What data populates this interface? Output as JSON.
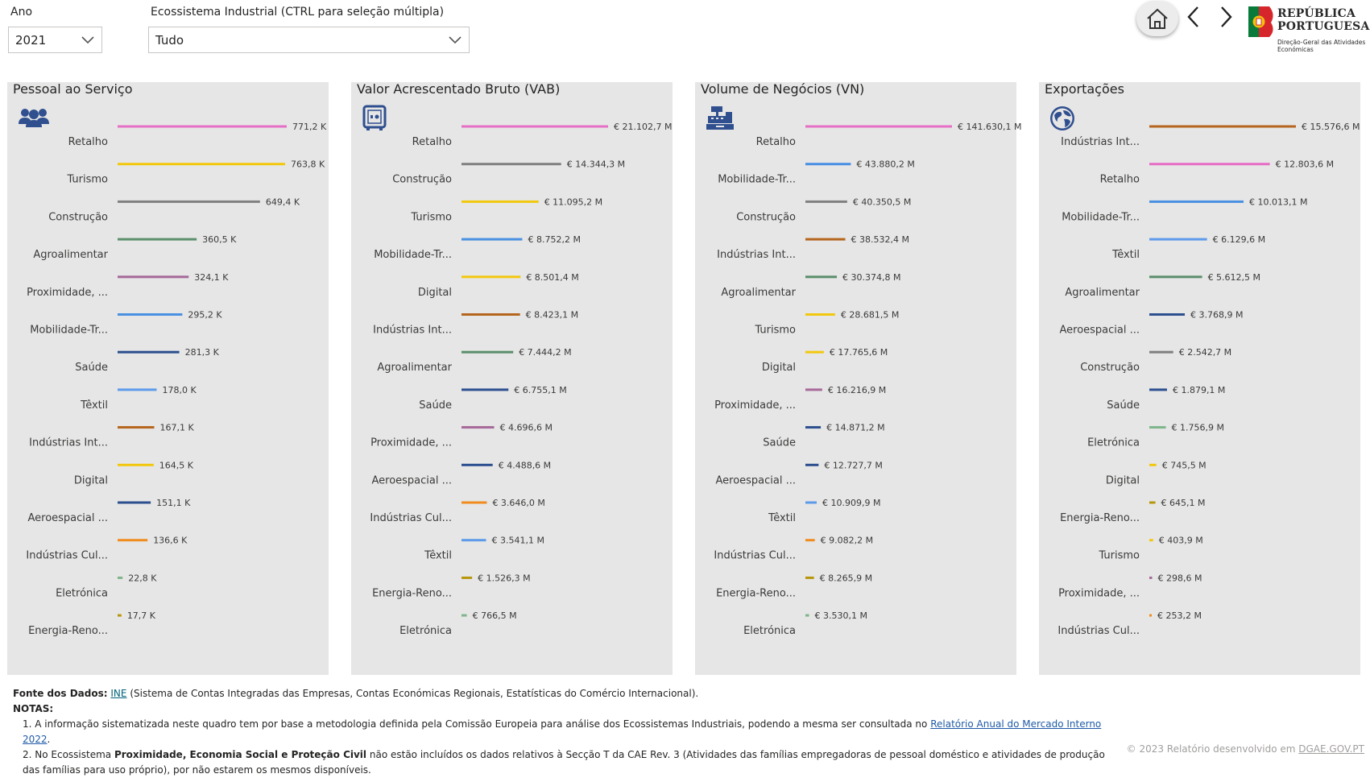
{
  "filters": {
    "year_label": "Ano",
    "year_value": "2021",
    "ecosystem_label": "Ecossistema Industrial (CTRL para seleção múltipla)",
    "ecosystem_value": "Tudo"
  },
  "logo": {
    "line1": "REPÚBLICA",
    "line2": "PORTUGUESA",
    "sub1": "Direção-Geral das Atividades",
    "sub2": "Económicas"
  },
  "colors": {
    "Retalho": "#e66fc5",
    "Turismo": "#f2c80f",
    "Construção": "#808080",
    "Agroalimentar": "#5b8f6b",
    "Proximidade, ...": "#a66999",
    "Mobilidade-Tr...": "#4a90e2",
    "Saúde": "#2c4f8f",
    "Têxtil": "#5d9bea",
    "Indústrias Int...": "#b5651d",
    "Digital": "#f2c80f",
    "Aeroespacial ...": "#2c4f8f",
    "Indústrias Cul...": "#f08c1e",
    "Eletrónica": "#7fb58a",
    "Energia-Reno...": "#b8960c"
  },
  "chart_data": [
    {
      "type": "bar",
      "title": "Pessoal ao Serviço",
      "icon": "people-icon",
      "categories": [
        "Retalho",
        "Turismo",
        "Construção",
        "Agroalimentar",
        "Proximidade, ...",
        "Mobilidade-Tr...",
        "Saúde",
        "Têxtil",
        "Indústrias Int...",
        "Digital",
        "Aeroespacial ...",
        "Indústrias Cul...",
        "Eletrónica",
        "Energia-Reno..."
      ],
      "values": [
        771.2,
        763.8,
        649.4,
        360.5,
        324.1,
        295.2,
        281.3,
        178.0,
        167.1,
        164.5,
        151.1,
        136.6,
        22.8,
        17.7
      ],
      "labels": [
        "771,2 K",
        "763,8 K",
        "649,4 K",
        "360,5 K",
        "324,1 K",
        "295,2 K",
        "281,3 K",
        "178,0 K",
        "167,1 K",
        "164,5 K",
        "151,1 K",
        "136,6 K",
        "22,8 K",
        "17,7 K"
      ],
      "unit": "K"
    },
    {
      "type": "bar",
      "title": "Valor Acrescentado Bruto (VAB)",
      "icon": "safe-icon",
      "categories": [
        "Retalho",
        "Construção",
        "Turismo",
        "Mobilidade-Tr...",
        "Digital",
        "Indústrias Int...",
        "Agroalimentar",
        "Saúde",
        "Proximidade, ...",
        "Aeroespacial ...",
        "Indústrias Cul...",
        "Têxtil",
        "Energia-Reno...",
        "Eletrónica"
      ],
      "values": [
        21102.7,
        14344.3,
        11095.2,
        8752.2,
        8501.4,
        8423.1,
        7444.2,
        6755.1,
        4696.6,
        4488.6,
        3646.0,
        3541.1,
        1526.3,
        766.5
      ],
      "labels": [
        "€ 21.102,7 M",
        "€ 14.344,3 M",
        "€ 11.095,2 M",
        "€ 8.752,2 M",
        "€ 8.501,4 M",
        "€ 8.423,1 M",
        "€ 7.444,2 M",
        "€ 6.755,1 M",
        "€ 4.696,6 M",
        "€ 4.488,6 M",
        "€ 3.646,0 M",
        "€ 3.541,1 M",
        "€ 1.526,3 M",
        "€ 766,5 M"
      ],
      "unit": "M€"
    },
    {
      "type": "bar",
      "title": "Volume de Negócios (VN)",
      "icon": "cash-register-icon",
      "categories": [
        "Retalho",
        "Mobilidade-Tr...",
        "Construção",
        "Indústrias Int...",
        "Agroalimentar",
        "Turismo",
        "Digital",
        "Proximidade, ...",
        "Saúde",
        "Aeroespacial ...",
        "Têxtil",
        "Indústrias Cul...",
        "Energia-Reno...",
        "Eletrónica"
      ],
      "values": [
        141630.1,
        43880.2,
        40350.5,
        38532.4,
        30374.8,
        28681.5,
        17765.6,
        16216.9,
        14871.2,
        12727.7,
        10909.9,
        9082.2,
        8265.9,
        3530.1
      ],
      "labels": [
        "€ 141.630,1 M",
        "€ 43.880,2 M",
        "€ 40.350,5 M",
        "€ 38.532,4 M",
        "€ 30.374,8 M",
        "€ 28.681,5 M",
        "€ 17.765,6 M",
        "€ 16.216,9 M",
        "€ 14.871,2 M",
        "€ 12.727,7 M",
        "€ 10.909,9 M",
        "€ 9.082,2 M",
        "€ 8.265,9 M",
        "€ 3.530,1 M"
      ],
      "unit": "M€"
    },
    {
      "type": "bar",
      "title": "Exportações",
      "icon": "globe-icon",
      "categories": [
        "Indústrias Int...",
        "Retalho",
        "Mobilidade-Tr...",
        "Têxtil",
        "Agroalimentar",
        "Aeroespacial ...",
        "Construção",
        "Saúde",
        "Eletrónica",
        "Digital",
        "Energia-Reno...",
        "Turismo",
        "Proximidade, ...",
        "Indústrias Cul..."
      ],
      "values": [
        15576.6,
        12803.6,
        10013.1,
        6129.6,
        5612.5,
        3768.9,
        2542.7,
        1879.1,
        1756.9,
        745.5,
        645.1,
        403.9,
        298.6,
        253.2
      ],
      "labels": [
        "€ 15.576,6 M",
        "€ 12.803,6 M",
        "€ 10.013,1 M",
        "€ 6.129,6 M",
        "€ 5.612,5 M",
        "€ 3.768,9 M",
        "€ 2.542,7 M",
        "€ 1.879,1 M",
        "€ 1.756,9 M",
        "€ 745,5 M",
        "€ 645,1 M",
        "€ 403,9 M",
        "€ 298,6 M",
        "€ 253,2 M"
      ],
      "unit": "M€"
    }
  ],
  "footer": {
    "source_label": "Fonte dos Dados:",
    "source_link": "INE",
    "source_text": "(Sistema de Contas Integradas das Empresas, Contas Económicas Regionais, Estatísticas do Comércio Internacional).",
    "notes_label": "NOTAS:",
    "note1_text": "1. A informação sistematizada neste quadro tem por base a metodologia definida pela Comissão Europeia para análise dos Ecossistemas Industriais, podendo a mesma ser consultada no",
    "note1_link": "Relatório Anual do Mercado Interno 2022",
    "note2_pre": "2. No Ecossistema",
    "note2_bold": "Proximidade, Economia Social e Proteção Civil",
    "note2_post": "não estão incluídos os dados relativos à Secção T da CAE Rev. 3 (Atividades das famílias empregadoras de pessoal doméstico e atividades de produção das famílias para uso próprio), por não estarem os mesmos disponíveis.",
    "copyright_text": "© 2023 Relatório desenvolvido em",
    "copyright_link": "DGAE.GOV.PT"
  }
}
